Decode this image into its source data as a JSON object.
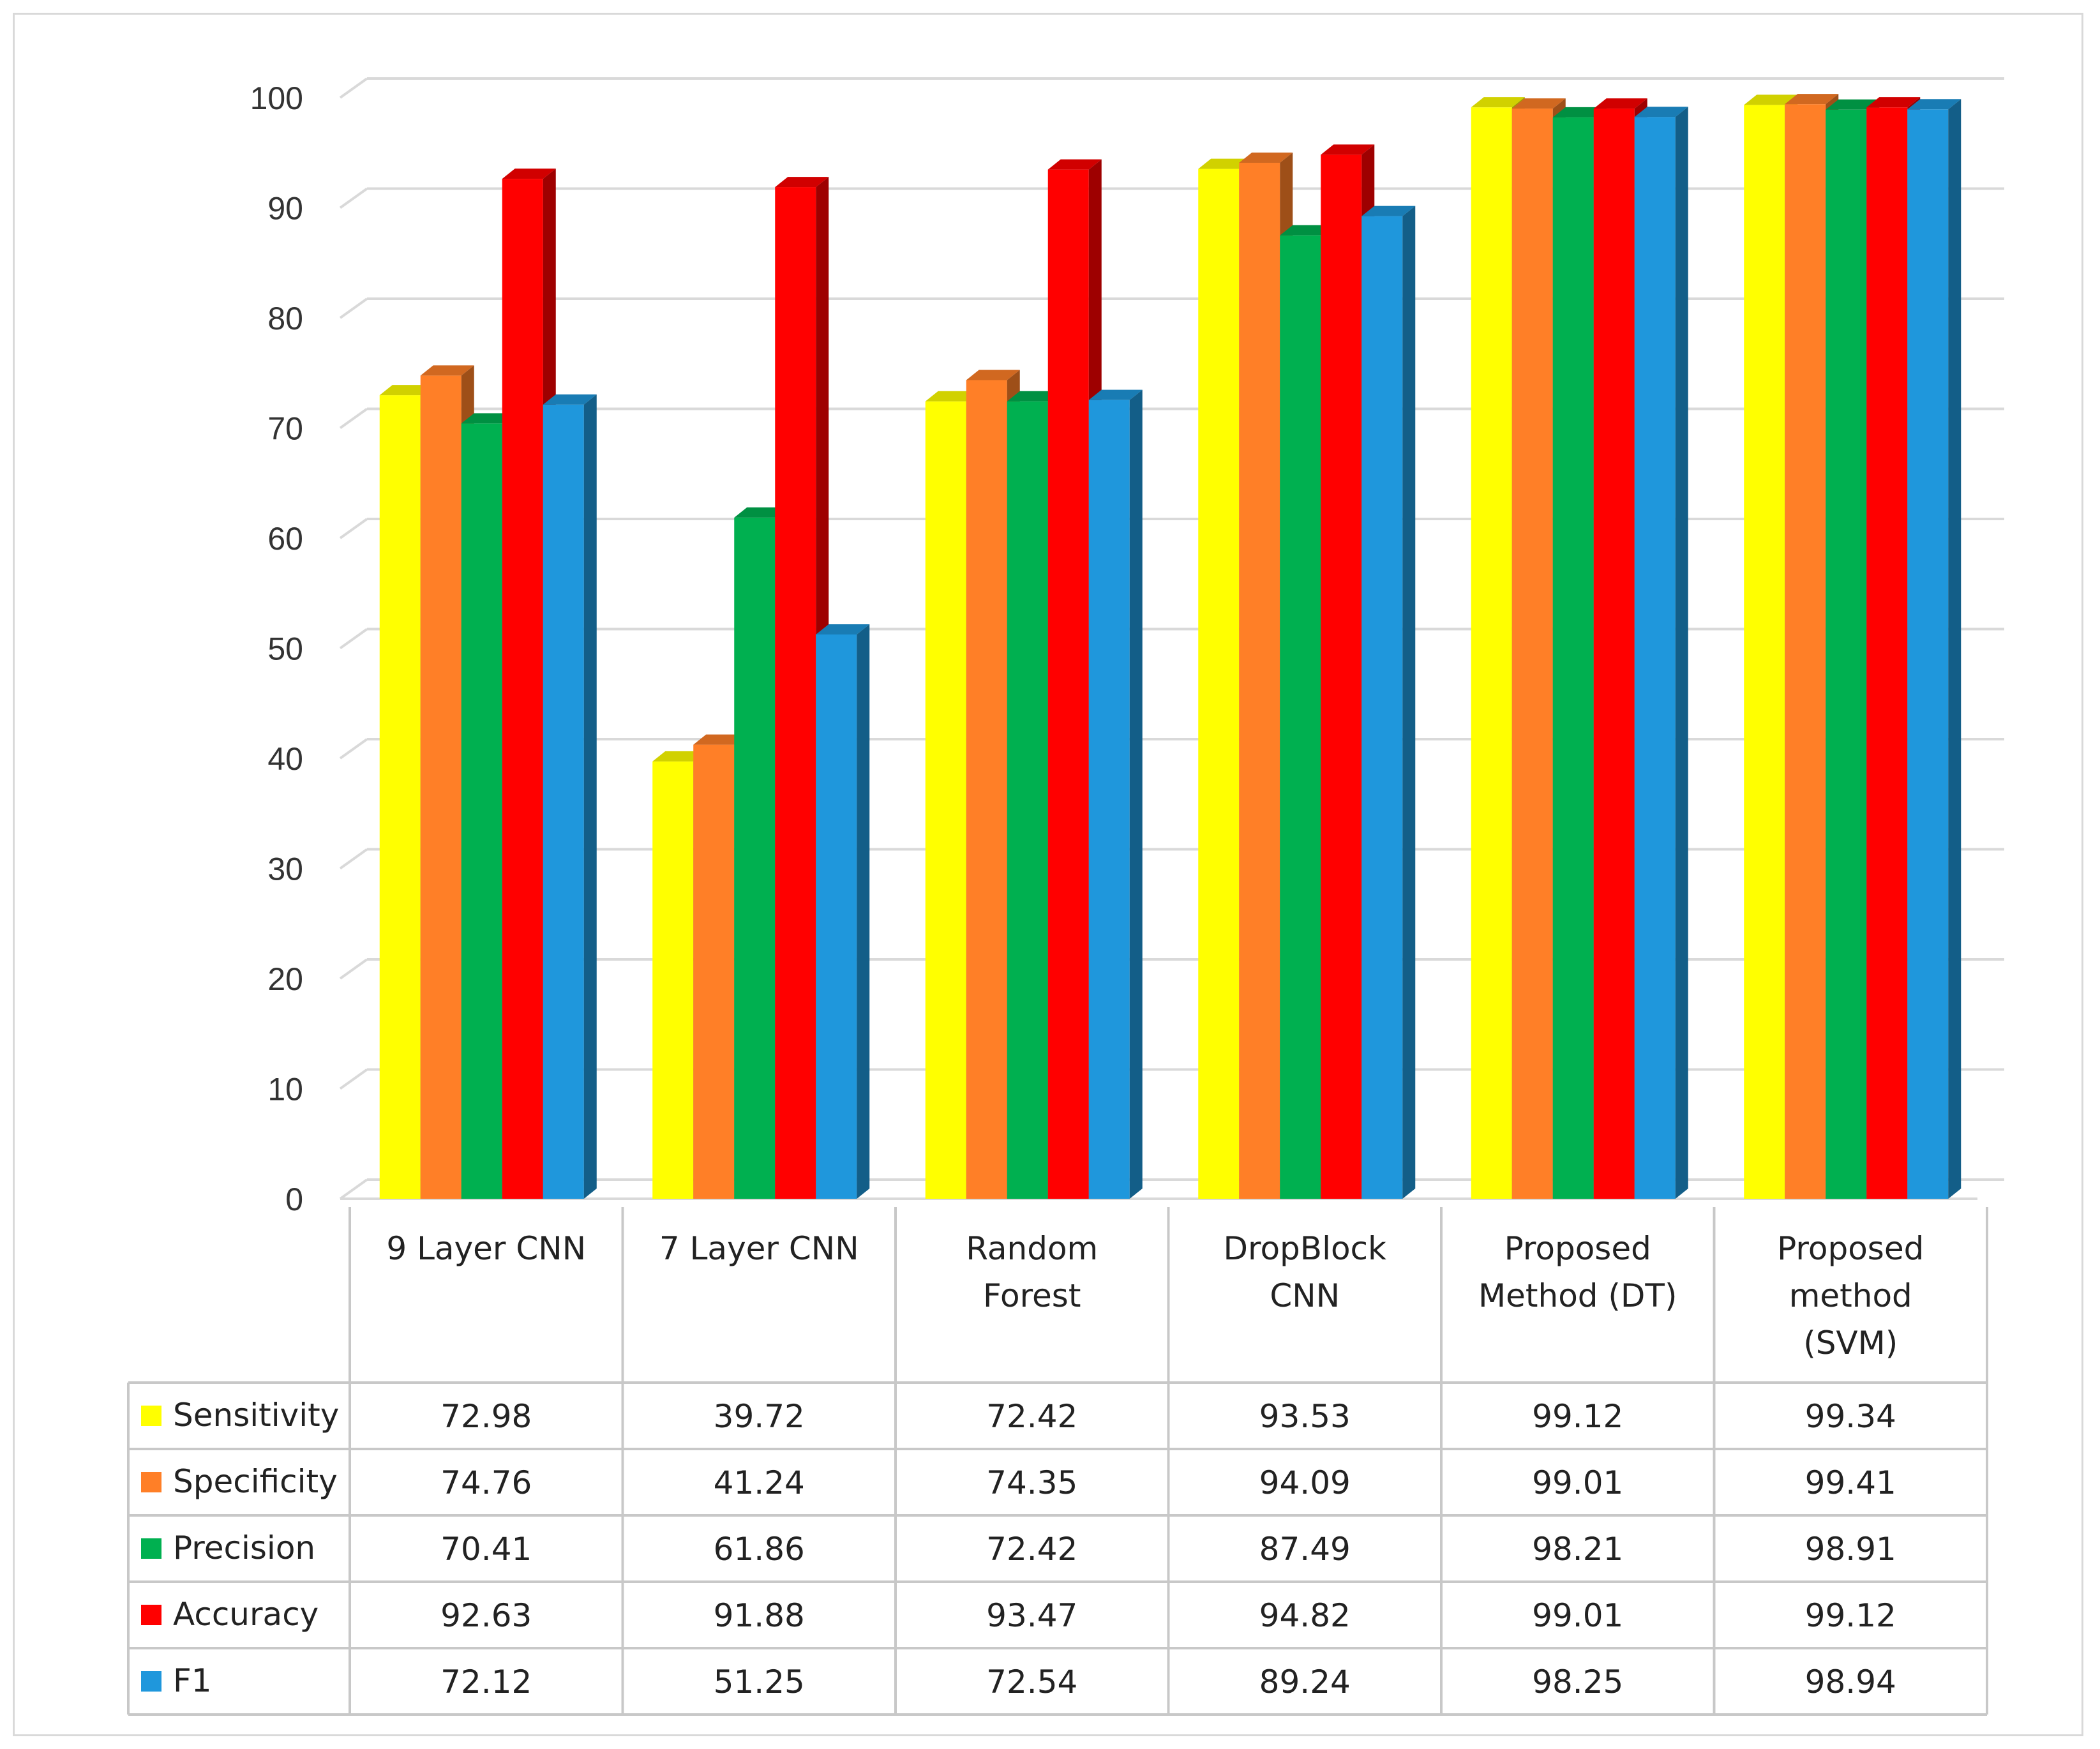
{
  "chart_data": {
    "type": "bar",
    "style": "3d-clustered-column-with-data-table",
    "title": "",
    "xlabel": "",
    "ylabel": "",
    "ylim": [
      0,
      100
    ],
    "yticks": [
      0,
      10,
      20,
      30,
      40,
      50,
      60,
      70,
      80,
      90,
      100
    ],
    "grid": true,
    "legend": "data-table-left",
    "categories": [
      [
        "9 Layer CNN"
      ],
      [
        "7 Layer CNN"
      ],
      [
        "Random",
        "Forest"
      ],
      [
        "DropBlock",
        "CNN"
      ],
      [
        "Proposed",
        "Method (DT)"
      ],
      [
        "Proposed",
        "method",
        "(SVM)"
      ]
    ],
    "series": [
      {
        "name": "Sensitivity",
        "color": "#ffff00",
        "values": [
          72.98,
          39.72,
          72.42,
          93.53,
          99.12,
          99.34
        ],
        "labels": [
          "72.98",
          "39.72",
          "72.42",
          "93.53",
          "99.12",
          "99.34"
        ]
      },
      {
        "name": "Specificity",
        "color": "#ff7f27",
        "values": [
          74.76,
          41.24,
          74.35,
          94.09,
          99.01,
          99.41
        ],
        "labels": [
          "74.76",
          "41.24",
          "74.35",
          "94.09",
          "99.01",
          "99.41"
        ]
      },
      {
        "name": "Precision",
        "color": "#00b050",
        "values": [
          70.41,
          61.86,
          72.42,
          87.49,
          98.21,
          98.91
        ],
        "labels": [
          "70.41",
          "61.86",
          "72.42",
          "87.49",
          "98.21",
          "98.91"
        ]
      },
      {
        "name": "Accuracy",
        "color": "#ff0000",
        "values": [
          92.63,
          91.88,
          93.47,
          94.82,
          99.01,
          99.12
        ],
        "labels": [
          "92.63",
          "91.88",
          "93.47",
          "94.82",
          "99.01",
          "99.12"
        ]
      },
      {
        "name": "F1",
        "color": "#1f97dc",
        "values": [
          72.12,
          51.25,
          72.54,
          89.24,
          98.25,
          98.94
        ],
        "labels": [
          "72.12",
          "51.25",
          "72.54",
          "89.24",
          "98.25",
          "98.94"
        ]
      }
    ]
  }
}
